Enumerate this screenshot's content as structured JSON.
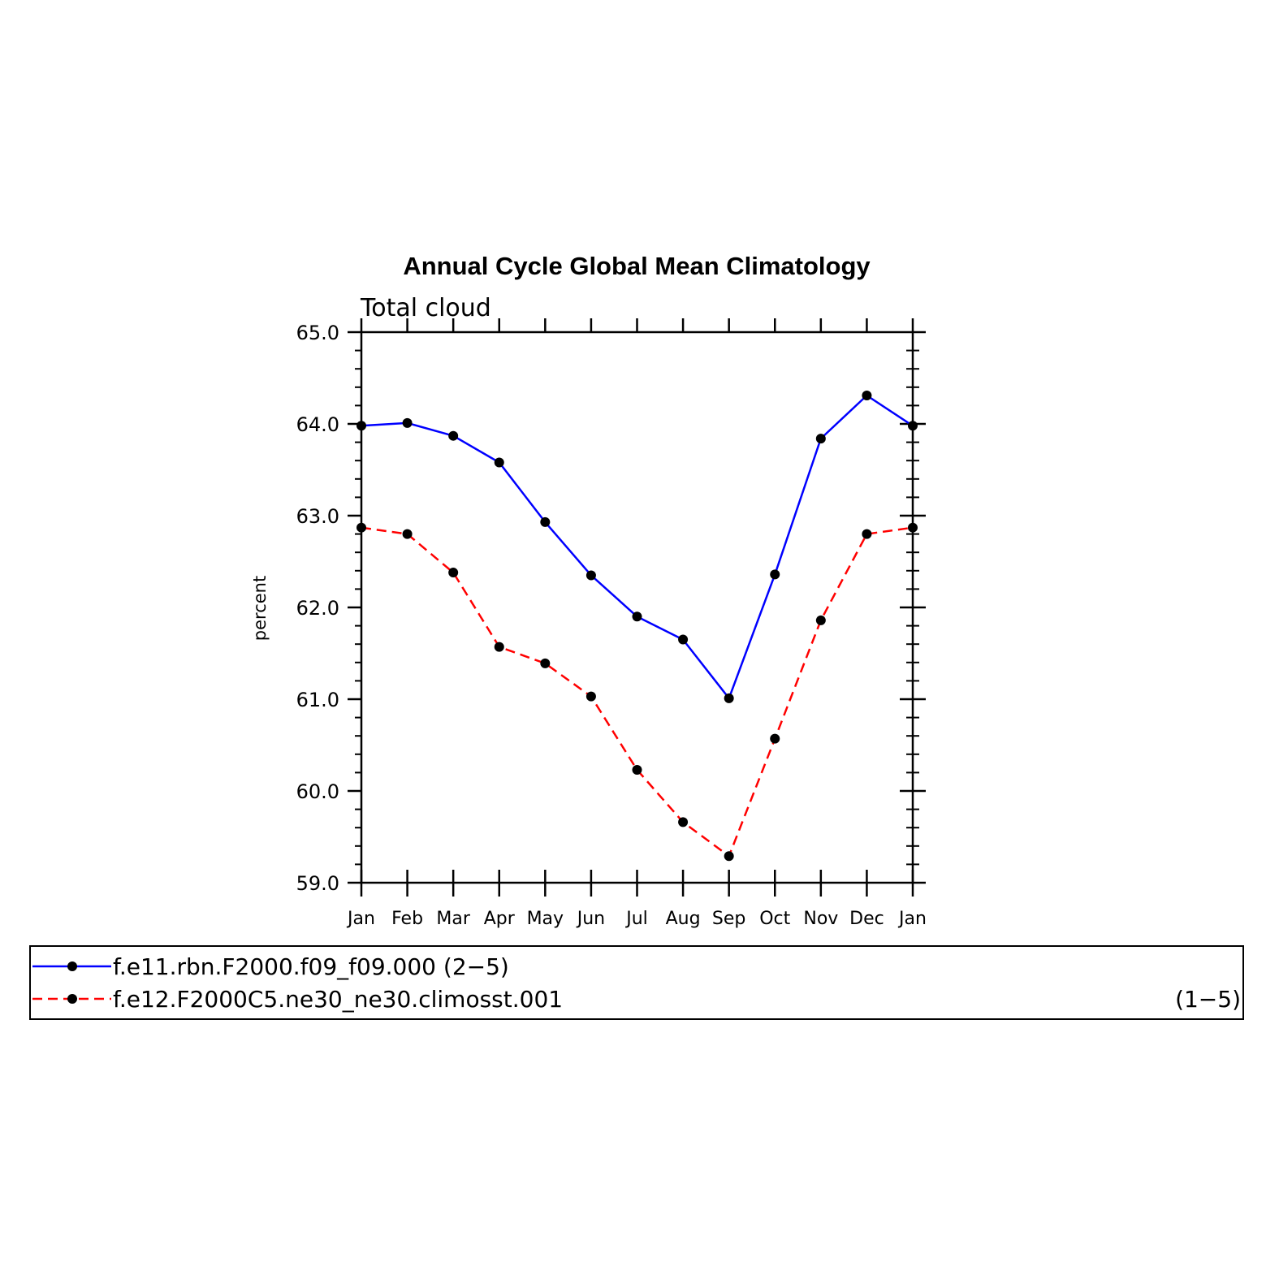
{
  "chart_data": {
    "type": "line",
    "title": "Annual Cycle Global Mean Climatology",
    "subtitle": "Total cloud",
    "xlabel": "",
    "ylabel": "percent",
    "categories": [
      "Jan",
      "Feb",
      "Mar",
      "Apr",
      "May",
      "Jun",
      "Jul",
      "Aug",
      "Sep",
      "Oct",
      "Nov",
      "Dec",
      "Jan"
    ],
    "ylim": [
      59.0,
      65.0
    ],
    "yticks": [
      "59.0",
      "60.0",
      "61.0",
      "62.0",
      "63.0",
      "64.0",
      "65.0"
    ],
    "grid": false,
    "legend_position": "bottom",
    "series": [
      {
        "name": "f.e11.rbn.F2000.f09_f09.000",
        "legend_suffix": "(2−5)",
        "color": "#0000ff",
        "line_style": "solid",
        "values": [
          63.98,
          64.01,
          63.87,
          63.58,
          62.93,
          62.35,
          61.9,
          61.65,
          61.01,
          62.36,
          63.84,
          64.31,
          63.98
        ]
      },
      {
        "name": "f.e12.F2000C5.ne30_ne30.climosst.001",
        "legend_suffix": "(1−5)",
        "color": "#ff0000",
        "line_style": "dashed",
        "values": [
          62.87,
          62.8,
          62.38,
          61.57,
          61.39,
          61.03,
          60.23,
          59.66,
          59.29,
          60.57,
          61.86,
          62.8,
          62.87
        ]
      }
    ]
  }
}
